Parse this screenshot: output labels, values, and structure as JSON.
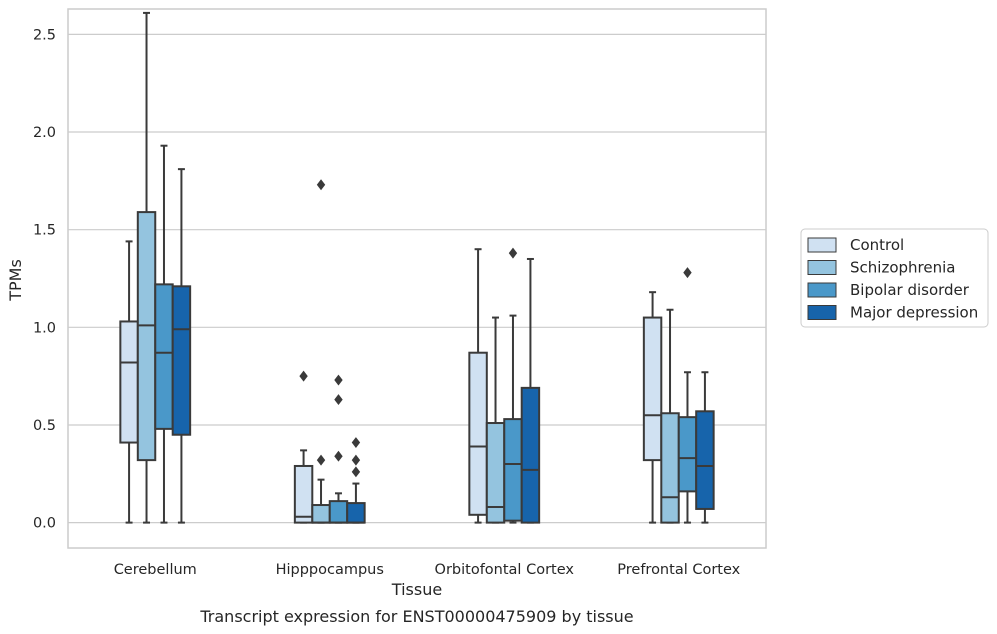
{
  "chart_data": {
    "type": "boxplot",
    "xlabel": "Tissue",
    "ylabel": "TPMs",
    "caption": "Transcript expression for ENST00000475909 by tissue",
    "ylim": [
      -0.13,
      2.63
    ],
    "yticks": [
      0.0,
      0.5,
      1.0,
      1.5,
      2.0,
      2.5
    ],
    "ytick_labels": [
      "0.0",
      "0.5",
      "1.0",
      "1.5",
      "2.0",
      "2.5"
    ],
    "grid": true,
    "legend_position": "right",
    "categories": [
      "Cerebellum",
      "Hipppocampus",
      "Orbitofontal Cortex",
      "Prefrontal Cortex"
    ],
    "series": [
      {
        "name": "Control",
        "color": "#d0e1f2",
        "boxes": [
          {
            "whislo": 0.0,
            "q1": 0.41,
            "med": 0.82,
            "q3": 1.03,
            "whishi": 1.44,
            "fliers": []
          },
          {
            "whislo": 0.0,
            "q1": 0.0,
            "med": 0.03,
            "q3": 0.29,
            "whishi": 0.37,
            "fliers": [
              0.75
            ]
          },
          {
            "whislo": 0.0,
            "q1": 0.04,
            "med": 0.39,
            "q3": 0.87,
            "whishi": 1.4,
            "fliers": []
          },
          {
            "whislo": 0.0,
            "q1": 0.32,
            "med": 0.55,
            "q3": 1.05,
            "whishi": 1.18,
            "fliers": []
          }
        ]
      },
      {
        "name": "Schizophrenia",
        "color": "#94c4df",
        "boxes": [
          {
            "whislo": 0.0,
            "q1": 0.32,
            "med": 1.01,
            "q3": 1.59,
            "whishi": 2.61,
            "fliers": []
          },
          {
            "whislo": 0.0,
            "q1": 0.0,
            "med": 0.0,
            "q3": 0.09,
            "whishi": 0.22,
            "fliers": [
              0.32,
              1.73
            ]
          },
          {
            "whislo": 0.0,
            "q1": 0.0,
            "med": 0.08,
            "q3": 0.51,
            "whishi": 1.05,
            "fliers": []
          },
          {
            "whislo": 0.0,
            "q1": 0.0,
            "med": 0.13,
            "q3": 0.56,
            "whishi": 1.09,
            "fliers": []
          }
        ]
      },
      {
        "name": "Bipolar disorder",
        "color": "#4a98c9",
        "boxes": [
          {
            "whislo": 0.0,
            "q1": 0.48,
            "med": 0.87,
            "q3": 1.22,
            "whishi": 1.93,
            "fliers": []
          },
          {
            "whislo": 0.0,
            "q1": 0.0,
            "med": 0.0,
            "q3": 0.11,
            "whishi": 0.15,
            "fliers": [
              0.34,
              0.63,
              0.73
            ]
          },
          {
            "whislo": 0.0,
            "q1": 0.01,
            "med": 0.3,
            "q3": 0.53,
            "whishi": 1.06,
            "fliers": [
              1.38
            ]
          },
          {
            "whislo": 0.0,
            "q1": 0.16,
            "med": 0.33,
            "q3": 0.54,
            "whishi": 0.77,
            "fliers": [
              1.28
            ]
          }
        ]
      },
      {
        "name": "Major depression",
        "color": "#1764ab",
        "boxes": [
          {
            "whislo": 0.0,
            "q1": 0.45,
            "med": 0.99,
            "q3": 1.21,
            "whishi": 1.81,
            "fliers": []
          },
          {
            "whislo": 0.0,
            "q1": 0.0,
            "med": 0.0,
            "q3": 0.1,
            "whishi": 0.2,
            "fliers": [
              0.26,
              0.32,
              0.41
            ]
          },
          {
            "whislo": 0.0,
            "q1": 0.0,
            "med": 0.27,
            "q3": 0.69,
            "whishi": 1.35,
            "fliers": []
          },
          {
            "whislo": 0.0,
            "q1": 0.07,
            "med": 0.29,
            "q3": 0.57,
            "whishi": 0.77,
            "fliers": []
          }
        ]
      }
    ]
  }
}
